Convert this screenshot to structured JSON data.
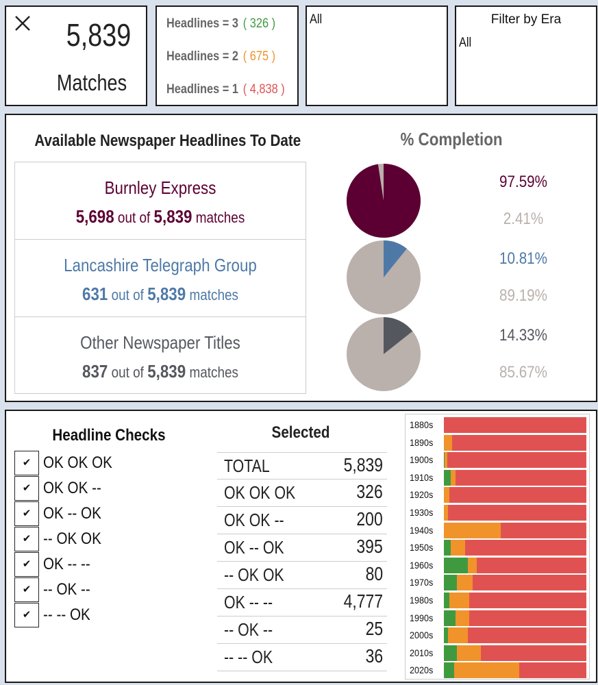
{
  "matches": {
    "count": "5,839",
    "label": "Matches"
  },
  "headline_filters": [
    {
      "label": "Headlines = 3",
      "count": "( 326 )",
      "color": "#3f9a3f"
    },
    {
      "label": "Headlines = 2",
      "count": "( 675 )",
      "color": "#f0932b"
    },
    {
      "label": "Headlines = 1",
      "count": "( 4,838 )",
      "color": "#e05252"
    }
  ],
  "filter1": {
    "value": "All"
  },
  "filter2": {
    "title": "Filter by Era",
    "value": "All"
  },
  "papers": {
    "title": "Available Newspaper Headlines To Date",
    "completion_title": "% Completion",
    "rows": [
      {
        "name": "Burnley Express",
        "count": "5,698",
        "out_of": "out of",
        "total": "5,839",
        "suffix": "matches",
        "color": "#5c0033",
        "pct_main": "97.59%",
        "pct_rest": "2.41%",
        "fraction": 0.9759
      },
      {
        "name": "Lancashire Telegraph Group",
        "count": "631",
        "out_of": "out of",
        "total": "5,839",
        "suffix": "matches",
        "color": "#4e79a7",
        "pct_main": "10.81%",
        "pct_rest": "89.19%",
        "fraction": 0.1081
      },
      {
        "name": "Other Newspaper Titles",
        "count": "837",
        "out_of": "out of",
        "total": "5,839",
        "suffix": "matches",
        "color": "#55575e",
        "pct_main": "14.33%",
        "pct_rest": "85.67%",
        "fraction": 0.1433
      }
    ],
    "rest_color": "#bab0ac"
  },
  "checks": {
    "title": "Headline Checks",
    "check_glyph": "✔",
    "items": [
      "OK  OK  OK",
      "OK  OK  --",
      "OK  --  OK",
      "--  OK  OK",
      "OK  --  --",
      "--  OK  --",
      "--  --  OK"
    ]
  },
  "selected": {
    "title": "Selected",
    "rows": [
      {
        "label": "TOTAL",
        "value": "5,839"
      },
      {
        "label": "OK  OK  OK",
        "value": "326"
      },
      {
        "label": "OK  OK  --",
        "value": "200"
      },
      {
        "label": "OK  --  OK",
        "value": "395"
      },
      {
        "label": "--  OK  OK",
        "value": "80"
      },
      {
        "label": "OK  --  --",
        "value": "4,777"
      },
      {
        "label": "--  OK  --",
        "value": "25"
      },
      {
        "label": "--  --  OK",
        "value": "36"
      }
    ]
  },
  "chart_data": {
    "type": "bar",
    "orientation": "horizontal-stacked-100",
    "title": "",
    "categories": [
      "1880s",
      "1890s",
      "1900s",
      "1910s",
      "1920s",
      "1930s",
      "1940s",
      "1950s",
      "1960s",
      "1970s",
      "1980s",
      "1990s",
      "2000s",
      "2010s",
      "2020s"
    ],
    "series": [
      {
        "name": "Headlines = 3",
        "color": "#3f9a3f",
        "values": [
          0,
          0,
          0.5,
          5,
          0,
          0,
          0,
          5,
          17,
          9,
          4,
          8,
          3,
          9,
          7
        ]
      },
      {
        "name": "Headlines = 2",
        "color": "#f0932b",
        "values": [
          0,
          6,
          2,
          3,
          4,
          3,
          40,
          10,
          6,
          11,
          14,
          10,
          14,
          17,
          46
        ]
      },
      {
        "name": "Headlines = 1",
        "color": "#e05252",
        "values": [
          100,
          94,
          97.5,
          92,
          96,
          97,
          60,
          85,
          77,
          80,
          82,
          82,
          83,
          74,
          47
        ]
      }
    ],
    "xlim": [
      0,
      100
    ]
  }
}
